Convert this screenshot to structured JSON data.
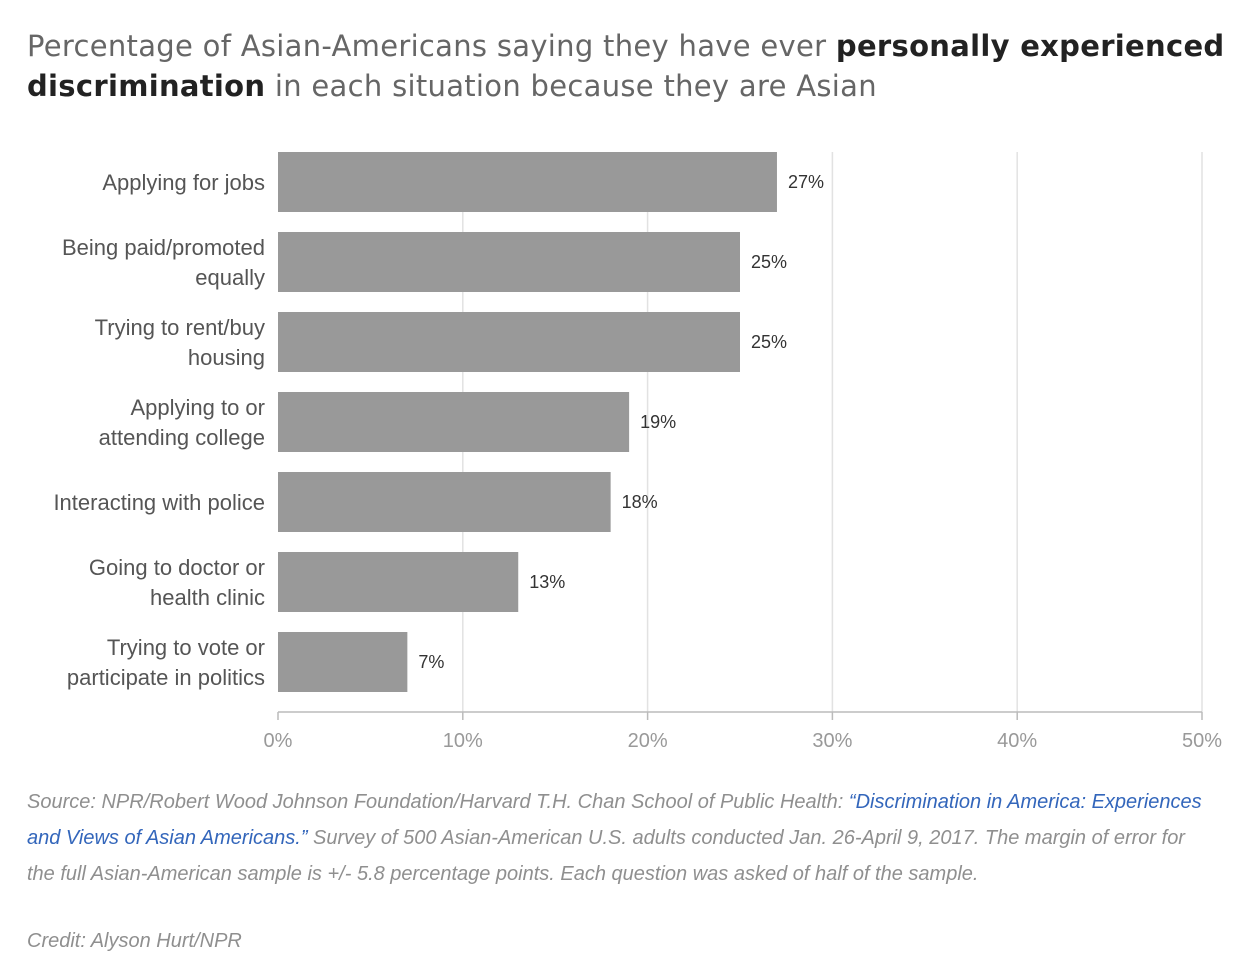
{
  "title": {
    "part1": "Percentage of Asian-Americans saying they have ever ",
    "bold1": "personally experienced discrimination",
    "part2": " in each situation because they are Asian"
  },
  "chart_data": {
    "type": "bar",
    "orientation": "horizontal",
    "categories": [
      [
        "Applying for jobs"
      ],
      [
        "Being paid/promoted",
        "equally"
      ],
      [
        "Trying to rent/buy",
        "housing"
      ],
      [
        "Applying to or",
        "attending college"
      ],
      [
        "Interacting with police"
      ],
      [
        "Going to doctor or",
        "health clinic"
      ],
      [
        "Trying to vote or",
        "participate in politics"
      ]
    ],
    "values": [
      27,
      25,
      25,
      19,
      18,
      13,
      7
    ],
    "value_labels": [
      "27%",
      "25%",
      "25%",
      "19%",
      "18%",
      "13%",
      "7%"
    ],
    "xlim": [
      0,
      50
    ],
    "ticks": [
      0,
      10,
      20,
      30,
      40,
      50
    ],
    "tick_labels": [
      "0%",
      "10%",
      "20%",
      "30%",
      "40%",
      "50%"
    ],
    "grid": true,
    "bar_color": "#999999",
    "grid_color": "#e2e2e2"
  },
  "footer": {
    "source_prefix": "Source: NPR/Robert Wood Johnson Foundation/Harvard T.H. Chan School of Public Health: ",
    "source_link": "“Discrimination in America: Experiences and Views of Asian Americans.”",
    "source_suffix": " Survey of 500 Asian-American U.S. adults conducted Jan. 26-April 9, 2017. The margin of error for the full Asian-American sample is +/- 5.8 percentage points. Each question was asked of half of the sample.",
    "credit": "Credit: Alyson Hurt/NPR"
  }
}
